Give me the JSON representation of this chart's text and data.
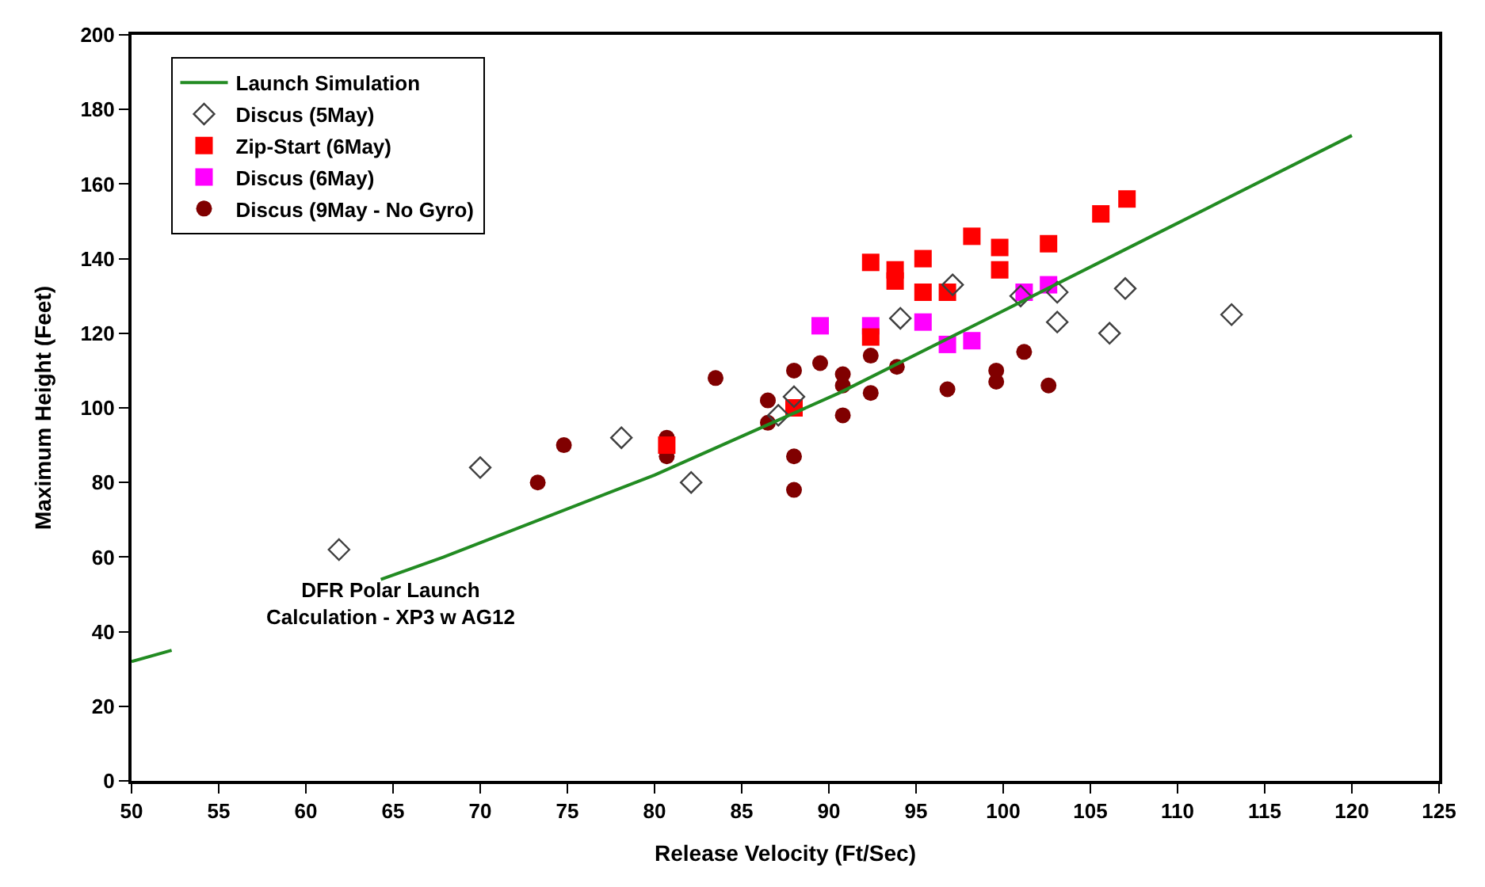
{
  "chart_data": {
    "type": "scatter",
    "xlabel": "Release Velocity (Ft/Sec)",
    "ylabel": "Maximum Height (Feet)",
    "xlim": [
      50,
      125
    ],
    "xticks": [
      50,
      55,
      60,
      65,
      70,
      75,
      80,
      85,
      90,
      95,
      100,
      105,
      110,
      115,
      120,
      125
    ],
    "ylim": [
      0,
      200
    ],
    "yticks": [
      0,
      20,
      40,
      60,
      80,
      100,
      120,
      140,
      160,
      180,
      200
    ],
    "legend": "top left",
    "annotations": [
      "DFR Polar Launch\nCalculation - XP3 w AG12"
    ],
    "series": [
      {
        "name": "Launch Simulation",
        "type": "line",
        "color": "#228b22",
        "marker": "none",
        "line_style": "solid",
        "x": [
          50,
          52.3,
          58,
          64.3,
          67.9,
          80,
          90.6,
          100,
          108.5,
          120
        ],
        "values": [
          32,
          35,
          null,
          54,
          60,
          82,
          104,
          126,
          146,
          173
        ]
      },
      {
        "name": "Discus (5May)",
        "color": "#404040",
        "marker": "diamond",
        "x": [
          61.9,
          70,
          78.1,
          82.1,
          87.1,
          88,
          94.1,
          97.1,
          101,
          103.1,
          103.1,
          106.1,
          107,
          113.1
        ],
        "values": [
          62,
          84,
          92,
          80,
          98,
          103,
          124,
          133,
          130,
          131,
          123,
          120,
          132,
          125
        ]
      },
      {
        "name": "Zip-Start (6May)",
        "color": "#ff0000",
        "marker": "square",
        "x": [
          80.7,
          88,
          92.4,
          92.4,
          93.8,
          93.8,
          95.4,
          95.4,
          96.8,
          98.2,
          99.8,
          99.8,
          102.6,
          105.6,
          107.1
        ],
        "values": [
          90,
          100,
          119,
          139,
          137,
          134,
          140,
          131,
          131,
          146,
          143,
          137,
          144,
          152,
          156
        ]
      },
      {
        "name": "Discus (6May)",
        "color": "#ff00ff",
        "marker": "square",
        "x": [
          89.5,
          92.4,
          95.4,
          96.8,
          98.2,
          101.2,
          102.6
        ],
        "values": [
          122,
          122,
          123,
          117,
          118,
          131,
          133
        ]
      },
      {
        "name": "Discus (9May - No Gyro)",
        "color": "#800000",
        "marker": "circle",
        "x": [
          73.3,
          74.8,
          80.7,
          80.7,
          83.5,
          86.5,
          86.5,
          88,
          88,
          88,
          89.5,
          90.8,
          90.8,
          90.8,
          92.4,
          92.4,
          93.9,
          96.8,
          99.6,
          99.6,
          101.2,
          102.6
        ],
        "values": [
          80,
          90,
          92,
          87,
          108,
          102,
          96,
          110,
          87,
          78,
          112,
          109,
          106,
          98,
          114,
          104,
          111,
          105,
          110,
          107,
          115,
          106
        ]
      }
    ]
  }
}
